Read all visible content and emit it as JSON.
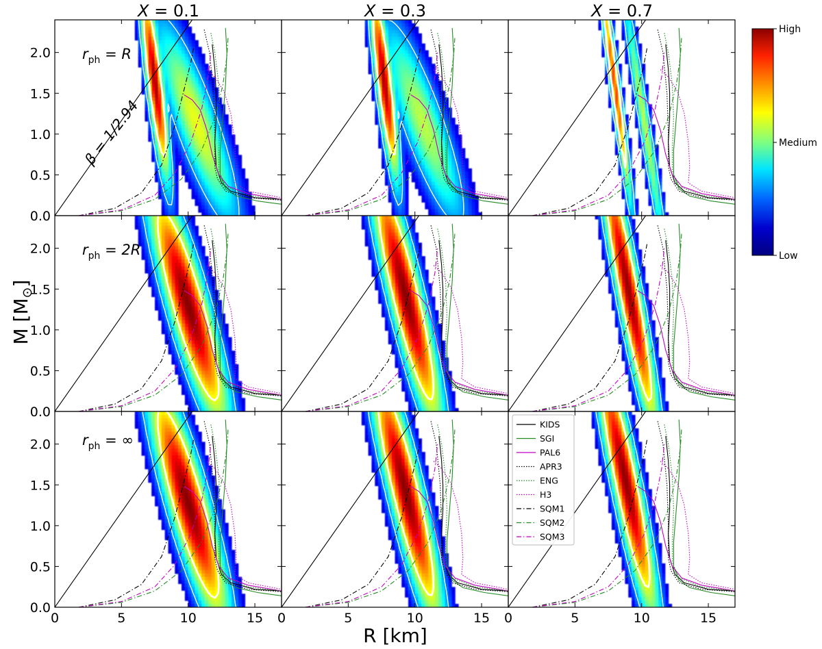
{
  "chart_data": {
    "type": "heatmap",
    "title": "",
    "xlabel": "R [km]",
    "ylabel_main": "M [M",
    "ylabel_sub": "⊙",
    "ylabel_close": "]",
    "xlim": [
      0,
      17
    ],
    "ylim": [
      0,
      2.4
    ],
    "xticks": [
      0,
      5,
      10,
      15
    ],
    "xtick_labels": [
      "0",
      "5",
      "10",
      "15"
    ],
    "yticks": [
      0.0,
      0.5,
      1.0,
      1.5,
      2.0
    ],
    "ytick_labels": [
      "0.0",
      "0.5",
      "1.0",
      "1.5",
      "2.0"
    ],
    "column_titles": [
      {
        "sym": "X",
        "eq": " = 0.1"
      },
      {
        "sym": "X",
        "eq": " = 0.3"
      },
      {
        "sym": "X",
        "eq": " = 0.7"
      }
    ],
    "row_labels": [
      {
        "pre": "r",
        "sub": "ph",
        "eq": " = ",
        "val": "R"
      },
      {
        "pre": "r",
        "sub": "ph",
        "eq": " = ",
        "val": "2R"
      },
      {
        "pre": "r",
        "sub": "ph",
        "eq": " = ",
        "val": "∞"
      }
    ],
    "annotation": "β = 1/2.94",
    "limit_line_slope_msun_per_km": 0.233,
    "colorbar": {
      "labels": [
        "High",
        "Medium",
        "Low"
      ],
      "colors": [
        "#8b0000",
        "#ff2200",
        "#ff8c00",
        "#ffff00",
        "#7fff7f",
        "#00e5ff",
        "#0066ff",
        "#0000cd",
        "#00007f"
      ]
    },
    "eos_curves": [
      {
        "name": "KIDS",
        "color": "#000000",
        "style": "solid",
        "points": [
          [
            11.8,
            2.1
          ],
          [
            12.0,
            1.8
          ],
          [
            12.1,
            1.5
          ],
          [
            12.1,
            1.2
          ],
          [
            12.0,
            0.9
          ],
          [
            12.1,
            0.6
          ],
          [
            12.5,
            0.4
          ],
          [
            13.2,
            0.3
          ],
          [
            15.0,
            0.22
          ],
          [
            17.0,
            0.2
          ]
        ]
      },
      {
        "name": "SGI",
        "color": "#228b22",
        "style": "solid",
        "points": [
          [
            12.8,
            2.3
          ],
          [
            12.9,
            2.0
          ],
          [
            12.8,
            1.6
          ],
          [
            12.6,
            1.2
          ],
          [
            12.4,
            0.8
          ],
          [
            12.4,
            0.5
          ],
          [
            12.8,
            0.33
          ],
          [
            13.6,
            0.24
          ],
          [
            15.2,
            0.18
          ],
          [
            17.0,
            0.14
          ]
        ]
      },
      {
        "name": "PAL6",
        "color": "#c000c0",
        "style": "solid",
        "points": [
          [
            9.7,
            1.48
          ],
          [
            10.3,
            1.42
          ],
          [
            10.9,
            1.3
          ],
          [
            11.4,
            1.05
          ],
          [
            11.8,
            0.75
          ],
          [
            12.3,
            0.5
          ],
          [
            13.0,
            0.36
          ],
          [
            14.5,
            0.27
          ],
          [
            17.0,
            0.2
          ]
        ]
      },
      {
        "name": "APR3",
        "color": "#000000",
        "style": "dotted",
        "points": [
          [
            11.2,
            2.28
          ],
          [
            11.6,
            2.0
          ],
          [
            11.9,
            1.5
          ],
          [
            12.0,
            1.0
          ],
          [
            12.0,
            0.6
          ],
          [
            12.2,
            0.45
          ],
          [
            12.8,
            0.3
          ],
          [
            14.5,
            0.22
          ],
          [
            17.0,
            0.19
          ]
        ]
      },
      {
        "name": "ENG",
        "color": "#228b22",
        "style": "dotted",
        "points": [
          [
            11.7,
            2.24
          ],
          [
            12.0,
            2.0
          ],
          [
            12.3,
            1.6
          ],
          [
            12.4,
            1.2
          ],
          [
            12.3,
            0.8
          ],
          [
            12.3,
            0.55
          ],
          [
            12.8,
            0.36
          ],
          [
            14.5,
            0.25
          ],
          [
            17.0,
            0.2
          ]
        ]
      },
      {
        "name": "H3",
        "color": "#c000c0",
        "style": "dotted",
        "points": [
          [
            11.4,
            1.79
          ],
          [
            12.0,
            1.7
          ],
          [
            12.7,
            1.52
          ],
          [
            13.2,
            1.25
          ],
          [
            13.5,
            0.9
          ],
          [
            13.6,
            0.6
          ],
          [
            13.5,
            0.4
          ],
          [
            14.5,
            0.3
          ],
          [
            17.0,
            0.22
          ]
        ]
      },
      {
        "name": "SQM1",
        "color": "#000000",
        "style": "dashdot",
        "points": [
          [
            1.8,
            0.0
          ],
          [
            4.5,
            0.09
          ],
          [
            6.5,
            0.28
          ],
          [
            8.0,
            0.62
          ],
          [
            9.0,
            1.1
          ],
          [
            9.7,
            1.55
          ],
          [
            10.2,
            1.88
          ],
          [
            10.4,
            2.05
          ]
        ]
      },
      {
        "name": "SQM2",
        "color": "#228b22",
        "style": "dashdot",
        "points": [
          [
            1.8,
            0.0
          ],
          [
            5.0,
            0.06
          ],
          [
            7.5,
            0.2
          ],
          [
            9.5,
            0.45
          ],
          [
            11.0,
            0.8
          ],
          [
            12.0,
            1.2
          ],
          [
            12.6,
            1.6
          ],
          [
            12.9,
            1.95
          ],
          [
            13.0,
            2.2
          ]
        ]
      },
      {
        "name": "SQM3",
        "color": "#c000c0",
        "style": "dashdot",
        "points": [
          [
            1.8,
            0.0
          ],
          [
            5.0,
            0.07
          ],
          [
            7.5,
            0.25
          ],
          [
            9.0,
            0.52
          ],
          [
            10.2,
            0.9
          ],
          [
            11.0,
            1.3
          ],
          [
            11.5,
            1.7
          ],
          [
            11.7,
            2.0
          ]
        ]
      }
    ],
    "density_regions": [
      {
        "row": 0,
        "col": 0,
        "peaks": [
          {
            "x": 7.5,
            "y": 1.65,
            "sx": 1.1,
            "sy": 0.32,
            "rot": -49,
            "w": 1.0
          },
          {
            "x": 10.6,
            "y": 1.15,
            "sx": 2.4,
            "sy": 0.45,
            "rot": -20,
            "w": 0.55
          }
        ]
      },
      {
        "row": 0,
        "col": 1,
        "peaks": [
          {
            "x": 7.7,
            "y": 1.65,
            "sx": 1.1,
            "sy": 0.32,
            "rot": -49,
            "w": 1.0
          },
          {
            "x": 10.6,
            "y": 1.15,
            "sx": 2.4,
            "sy": 0.45,
            "rot": -20,
            "w": 0.5
          }
        ]
      },
      {
        "row": 0,
        "col": 2,
        "peaks": [
          {
            "x": 8.0,
            "y": 1.6,
            "sx": 1.4,
            "sy": 0.18,
            "rot": -50,
            "w": 0.9
          },
          {
            "x": 10.2,
            "y": 1.15,
            "sx": 1.8,
            "sy": 0.2,
            "rot": -45,
            "w": 0.55
          }
        ]
      },
      {
        "row": 1,
        "col": 0,
        "peaks": [
          {
            "x": 10.0,
            "y": 1.3,
            "sx": 2.3,
            "sy": 0.48,
            "rot": -25,
            "w": 1.0
          }
        ]
      },
      {
        "row": 1,
        "col": 1,
        "peaks": [
          {
            "x": 9.3,
            "y": 1.42,
            "sx": 2.2,
            "sy": 0.46,
            "rot": -30,
            "w": 1.0
          }
        ]
      },
      {
        "row": 1,
        "col": 2,
        "peaks": [
          {
            "x": 9.0,
            "y": 1.5,
            "sx": 2.0,
            "sy": 0.38,
            "rot": -38,
            "w": 1.0
          }
        ]
      },
      {
        "row": 2,
        "col": 0,
        "peaks": [
          {
            "x": 10.0,
            "y": 1.28,
            "sx": 2.3,
            "sy": 0.48,
            "rot": -25,
            "w": 1.0
          }
        ]
      },
      {
        "row": 2,
        "col": 1,
        "peaks": [
          {
            "x": 9.3,
            "y": 1.42,
            "sx": 2.2,
            "sy": 0.46,
            "rot": -30,
            "w": 1.0
          }
        ]
      },
      {
        "row": 2,
        "col": 2,
        "peaks": [
          {
            "x": 8.8,
            "y": 1.55,
            "sx": 2.0,
            "sy": 0.42,
            "rot": -35,
            "w": 1.0
          }
        ]
      }
    ],
    "contour_levels": [
      0.55,
      0.2
    ]
  }
}
